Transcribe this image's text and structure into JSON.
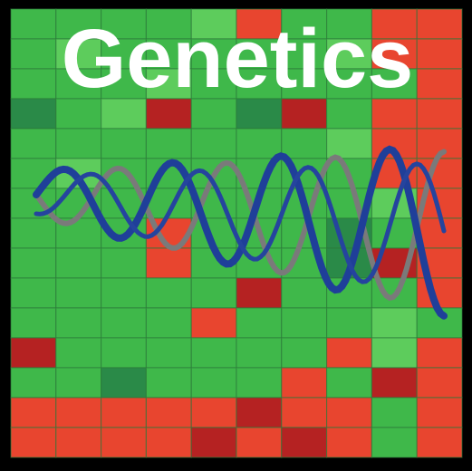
{
  "title": "Genetics"
}
